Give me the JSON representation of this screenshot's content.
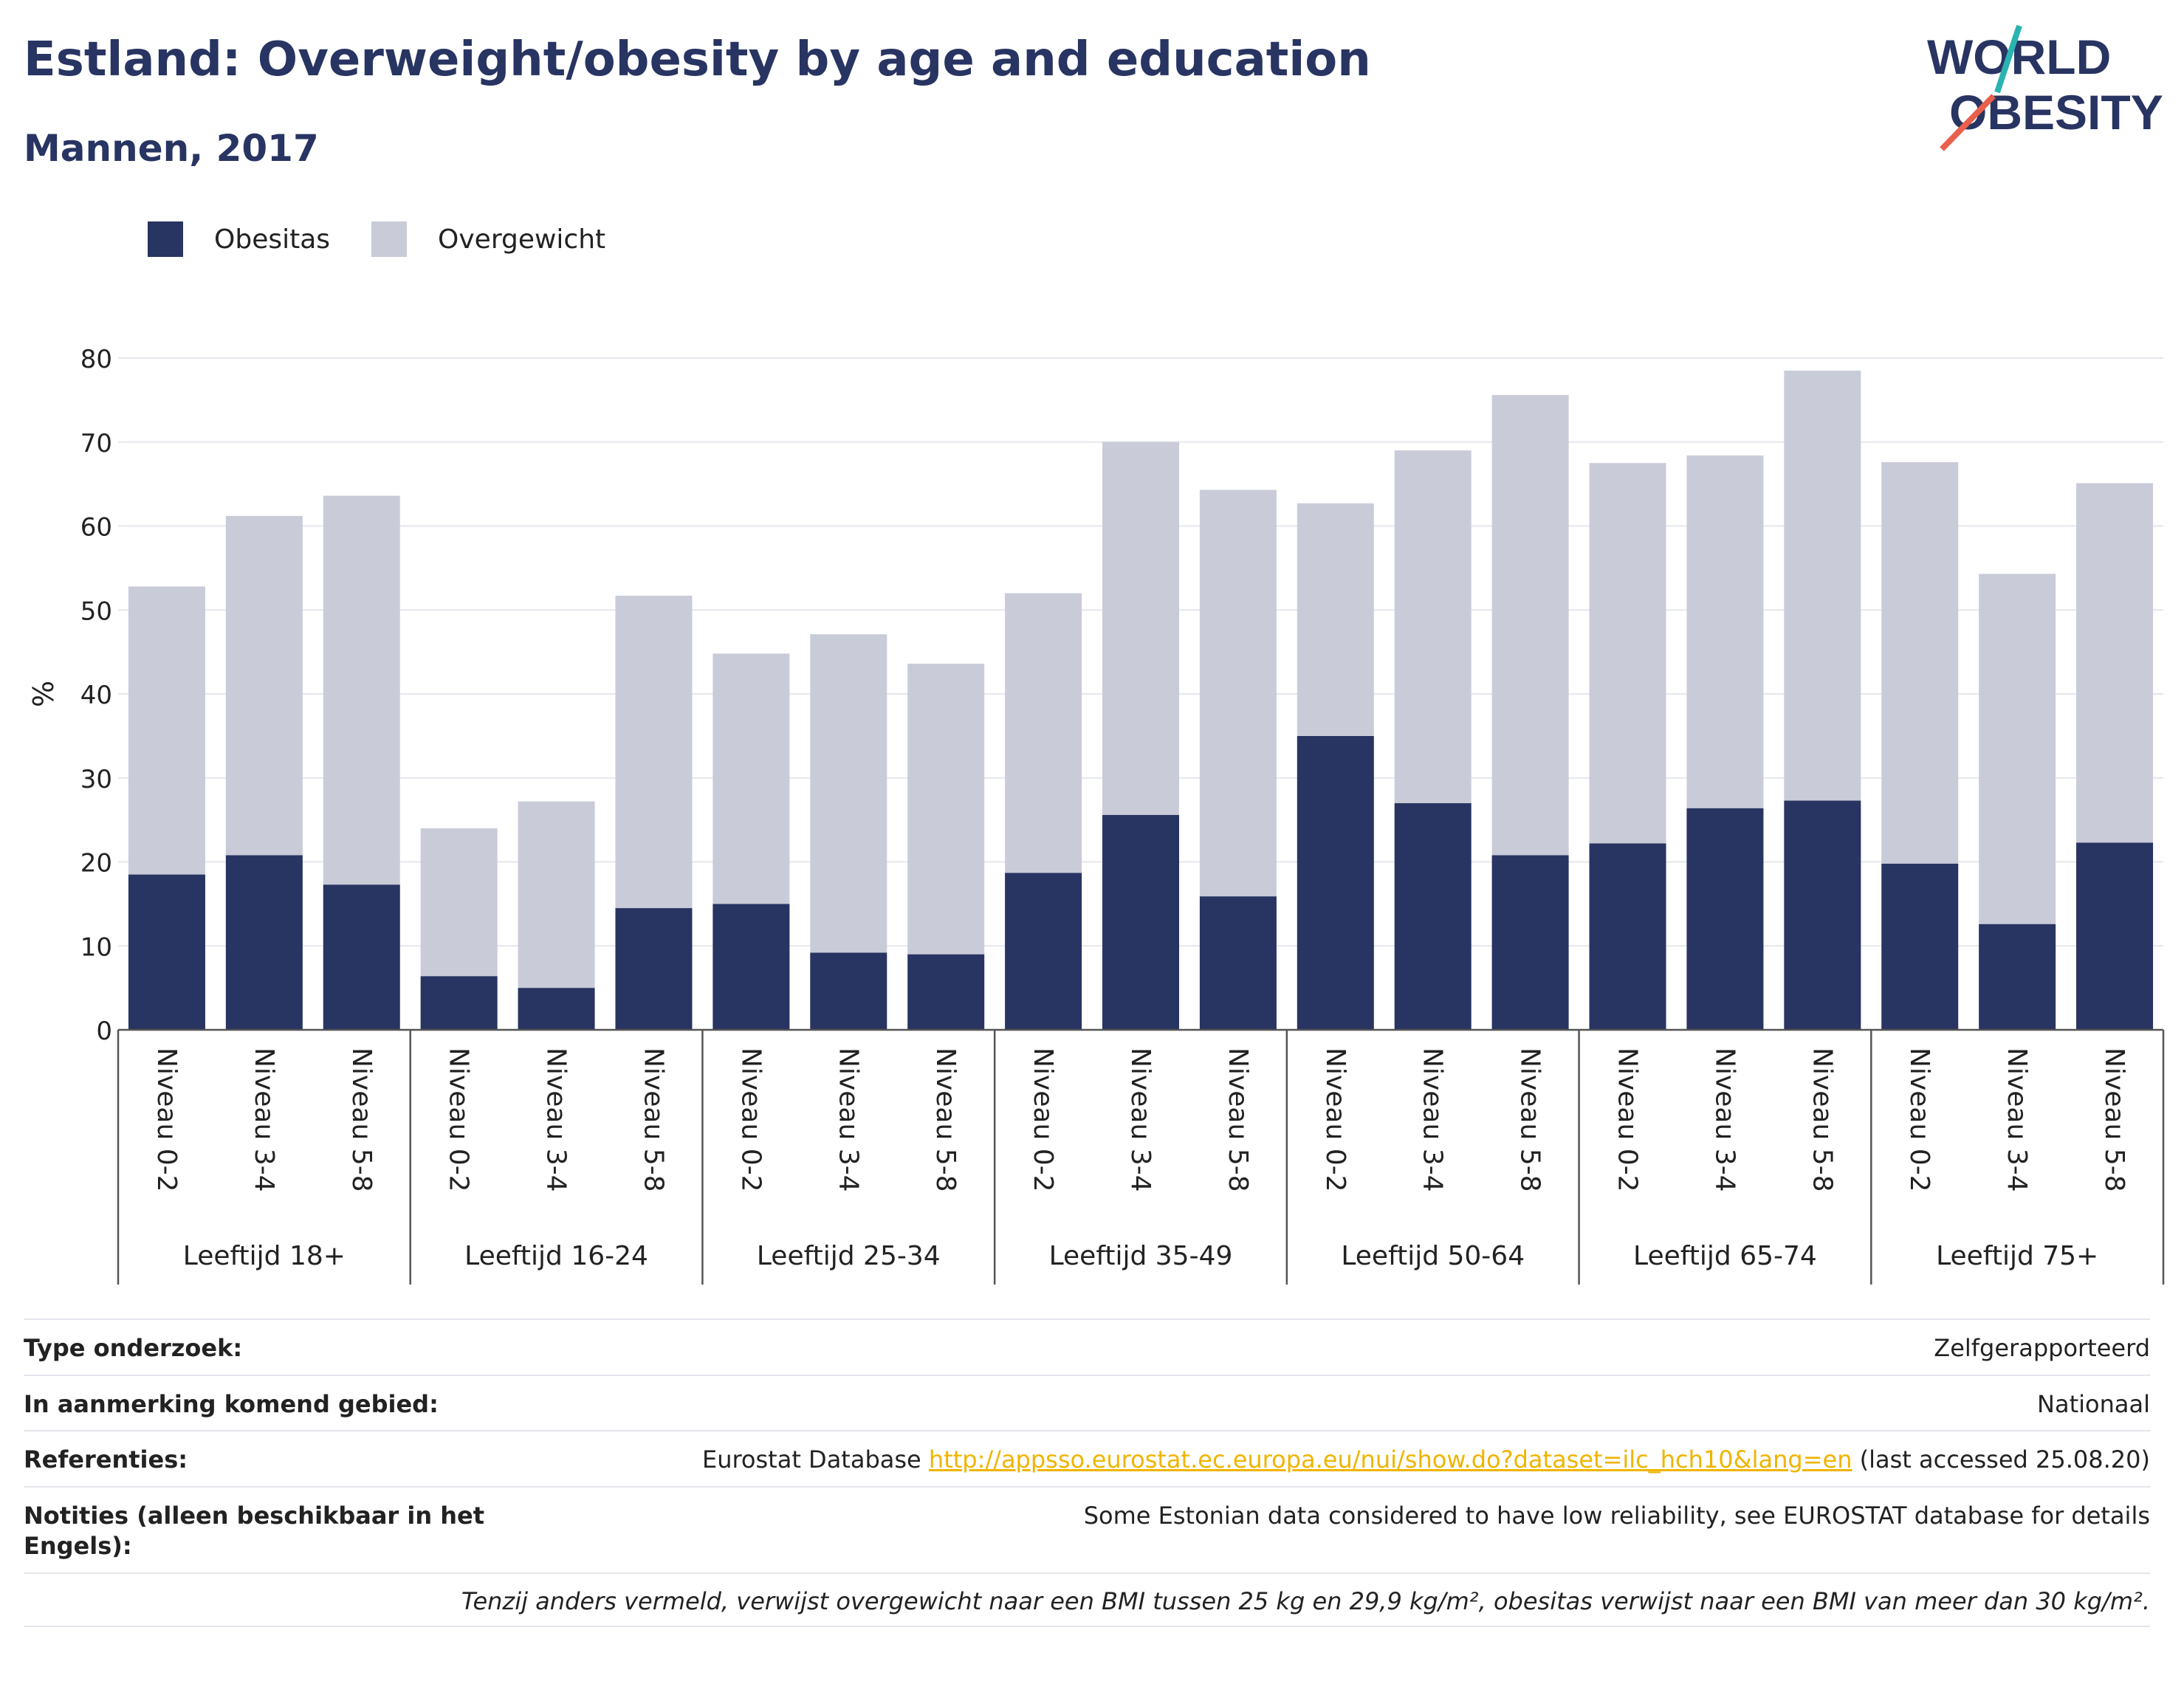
{
  "header": {
    "title": "Estland: Overweight/obesity by age and education",
    "subtitle": "Mannen, 2017"
  },
  "logo": {
    "line1": "WORLD",
    "line2": "OBESITY"
  },
  "colors": {
    "obesitas": "#283462",
    "overgewicht": "#c9ccd8",
    "accent_red": "#e8604c",
    "accent_teal": "#2ab3b0",
    "link": "#f0b400"
  },
  "chart_data": {
    "type": "bar",
    "stacked": true,
    "ylabel": "%",
    "ylim": [
      0,
      80
    ],
    "yticks": [
      0,
      10,
      20,
      30,
      40,
      50,
      60,
      70,
      80
    ],
    "grid": true,
    "legend_position": "top-left",
    "groups": [
      "Leeftijd 18+",
      "Leeftijd 16-24",
      "Leeftijd 25-34",
      "Leeftijd 35-49",
      "Leeftijd 50-64",
      "Leeftijd 65-74",
      "Leeftijd 75+"
    ],
    "subcategories": [
      "Niveau 0-2",
      "Niveau 3-4",
      "Niveau 5-8"
    ],
    "series": [
      {
        "name": "Obesitas",
        "values": [
          18.5,
          20.8,
          17.3,
          6.4,
          5.0,
          14.5,
          15.0,
          9.2,
          9.0,
          18.7,
          25.6,
          15.9,
          35.0,
          27.0,
          20.8,
          22.2,
          26.4,
          27.3,
          19.8,
          12.6,
          22.3
        ]
      },
      {
        "name": "Overgewicht",
        "values": [
          34.3,
          40.4,
          46.3,
          17.6,
          22.2,
          37.2,
          29.8,
          37.9,
          34.6,
          33.3,
          44.4,
          48.4,
          27.7,
          42.0,
          54.8,
          45.3,
          42.0,
          51.2,
          47.8,
          41.7,
          42.8
        ]
      }
    ]
  },
  "info": {
    "rows": [
      {
        "label": "Type onderzoek:",
        "value": "Zelfgerapporteerd"
      },
      {
        "label": "In aanmerking komend gebied:",
        "value": "Nationaal"
      },
      {
        "label": "Referenties:",
        "value_prefix": "Eurostat Database ",
        "link": "http://appsso.eurostat.ec.europa.eu/nui/show.do?dataset=ilc_hch10&lang=en",
        "value_suffix": " (last accessed 25.08.20)"
      },
      {
        "label": "Notities (alleen beschikbaar in het Engels):",
        "value": "Some Estonian data considered to have low reliability, see EUROSTAT database for details"
      }
    ],
    "footnote": "Tenzij anders vermeld, verwijst overgewicht naar een BMI tussen 25 kg en 29,9 kg/m², obesitas verwijst naar een BMI van meer dan 30 kg/m²."
  }
}
